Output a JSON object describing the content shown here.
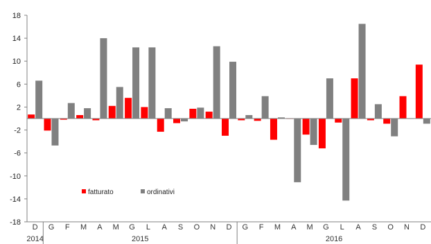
{
  "chart_data": {
    "type": "bar",
    "title": "",
    "xlabel": "",
    "ylabel": "",
    "ylim": [
      -18,
      18
    ],
    "yticks": [
      -18,
      -14,
      -10,
      -6,
      -2,
      2,
      6,
      10,
      14,
      18
    ],
    "grid": false,
    "legend_position": "bottom-left",
    "categories": [
      "D",
      "G",
      "F",
      "M",
      "A",
      "M",
      "G",
      "L",
      "A",
      "S",
      "O",
      "N",
      "D",
      "G",
      "F",
      "M",
      "A",
      "M",
      "G",
      "L",
      "A",
      "S",
      "O",
      "N",
      "D"
    ],
    "years": [
      {
        "label": "2014",
        "start": 0,
        "end": 0
      },
      {
        "label": "2015",
        "start": 1,
        "end": 12
      },
      {
        "label": "2016",
        "start": 13,
        "end": 24
      }
    ],
    "series": [
      {
        "name": "fatturato",
        "color": "#ff0000",
        "values": [
          0.7,
          -2.1,
          -0.2,
          0.6,
          -0.3,
          2.2,
          3.6,
          2.0,
          -2.3,
          -0.8,
          1.7,
          1.2,
          -3.0,
          -0.3,
          -0.4,
          -3.7,
          0.0,
          -2.8,
          -5.2,
          -0.7,
          7.0,
          -0.3,
          -0.9,
          3.9,
          9.4
        ]
      },
      {
        "name": "ordinativi",
        "color": "#808080",
        "values": [
          6.6,
          -4.7,
          2.7,
          1.8,
          14.0,
          5.5,
          12.4,
          12.4,
          1.8,
          -0.5,
          1.9,
          12.6,
          9.9,
          0.6,
          3.9,
          0.2,
          -11.1,
          -4.6,
          7.0,
          -14.3,
          16.5,
          2.5,
          -3.1,
          0.0,
          -0.9
        ]
      }
    ]
  }
}
